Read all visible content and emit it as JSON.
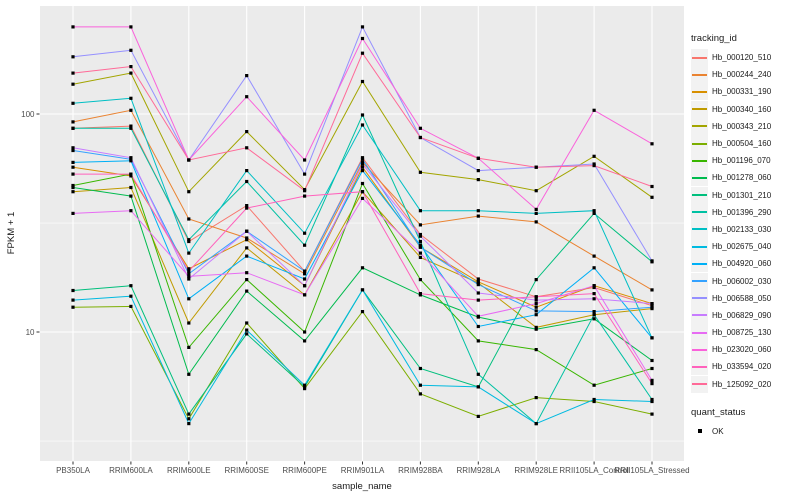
{
  "figure": {
    "background": "#FFFFFF",
    "panel_background": "#EBEBEB",
    "grid_color": "#FFFFFF",
    "axis_text_color": "#4D4D4D",
    "axis_title_color": "#1A1A1A",
    "tick_mark_color": "#333333",
    "point_color": "#000000",
    "legend_key_background": "#F2F2F2"
  },
  "chart_data": {
    "type": "line",
    "title": "",
    "xlabel": "sample_name",
    "ylabel": "FPKM + 1",
    "y_scale": "log10",
    "ylim": [
      2.6,
      320
    ],
    "y_tick_values": [
      100,
      10
    ],
    "y_tick_labels": [
      "100",
      "10"
    ],
    "y_minor_breaks": [
      31.6,
      3.16
    ],
    "grid": "on",
    "legend_position": "right",
    "legend_title": "tracking_id",
    "point_legend": {
      "title": "quant_status",
      "items": [
        {
          "label": "OK",
          "marker": "black-square"
        }
      ]
    },
    "x_categories": [
      "PB350LA",
      "RRIM600LA",
      "RRIM600LE",
      "RRIM600SE",
      "RRIM600PE",
      "RRIM901LA",
      "RRIM928BA",
      "RRIM928LA",
      "RRIM928LE",
      "RRII105LA_Control",
      "RRII105LA_Stressed"
    ],
    "series": [
      {
        "name": "Hb_000120_510",
        "color": "#F8766D",
        "values": [
          86,
          88,
          26,
          38,
          19,
          63,
          28,
          17.5,
          14.5,
          16,
          13.2
        ]
      },
      {
        "name": "Hb_000244_240",
        "color": "#EA8331",
        "values": [
          92,
          104,
          33,
          27,
          18.5,
          60,
          31,
          34,
          32,
          22.3,
          15.6
        ]
      },
      {
        "name": "Hb_000331_190",
        "color": "#D89000",
        "values": [
          57,
          52,
          19.5,
          26.5,
          16.3,
          57,
          24.5,
          17,
          13,
          16.3,
          13.5
        ]
      },
      {
        "name": "Hb_000340_160",
        "color": "#C09B00",
        "values": [
          44,
          46,
          11,
          24.3,
          14.8,
          44,
          22,
          16.8,
          10.5,
          12,
          12.8
        ]
      },
      {
        "name": "Hb_000343_210",
        "color": "#A3A500",
        "values": [
          137,
          154,
          44,
          83,
          45,
          141,
          54,
          50,
          44.5,
          64,
          41.5
        ]
      },
      {
        "name": "Hb_000504_160",
        "color": "#7CAE00",
        "values": [
          13,
          13.1,
          4.0,
          11,
          5.5,
          12.4,
          5.2,
          4.1,
          5.0,
          4.8,
          4.2
        ]
      },
      {
        "name": "Hb_001196_070",
        "color": "#39B600",
        "values": [
          47,
          53,
          8.5,
          17.4,
          10,
          48,
          17.4,
          9.1,
          8.3,
          5.7,
          6.8
        ]
      },
      {
        "name": "Hb_001278_060",
        "color": "#00BB4E",
        "values": [
          46,
          42,
          6.4,
          15.4,
          9.1,
          19.7,
          14.8,
          11.7,
          10.3,
          11.5,
          7.4
        ]
      },
      {
        "name": "Hb_001301_210",
        "color": "#00BF7D",
        "values": [
          15.5,
          16.3,
          4.2,
          9.8,
          5.6,
          15.6,
          6.8,
          5.6,
          17.4,
          35,
          21
        ]
      },
      {
        "name": "Hb_001396_290",
        "color": "#00C1A3",
        "values": [
          86,
          86,
          26.5,
          49,
          25,
          99,
          26,
          6.4,
          3.8,
          12,
          4.9
        ]
      },
      {
        "name": "Hb_002133_030",
        "color": "#00BFC4",
        "values": [
          112,
          118,
          23,
          55,
          28.4,
          89,
          36,
          36,
          35,
          36,
          9.4
        ]
      },
      {
        "name": "Hb_002675_040",
        "color": "#00BAE0",
        "values": [
          14,
          14.6,
          3.8,
          10.2,
          5.7,
          15.6,
          5.7,
          5.6,
          3.8,
          4.9,
          4.8
        ]
      },
      {
        "name": "Hb_004920_060",
        "color": "#00B0F6",
        "values": [
          60,
          61,
          14.2,
          22.3,
          17.5,
          55,
          25,
          10.6,
          12,
          19.7,
          9.4
        ]
      },
      {
        "name": "Hb_006002_030",
        "color": "#35A2FF",
        "values": [
          68,
          62,
          18.5,
          29,
          19,
          62,
          24.5,
          16.5,
          12.5,
          12.4,
          13
        ]
      },
      {
        "name": "Hb_006588_050",
        "color": "#9590FF",
        "values": [
          183,
          196,
          61.5,
          150,
          53,
          251,
          78,
          55,
          57,
          59,
          21.2
        ]
      },
      {
        "name": "Hb_006829_090",
        "color": "#C77CFF",
        "values": [
          70,
          63,
          17.5,
          29,
          16.3,
          59,
          27.5,
          15.1,
          14,
          14.2,
          13.5
        ]
      },
      {
        "name": "Hb_008725_130",
        "color": "#E76BF3",
        "values": [
          35,
          36,
          18,
          18.7,
          14.8,
          41,
          23,
          11.8,
          13.5,
          16.3,
          6.0
        ]
      },
      {
        "name": "Hb_023020_060",
        "color": "#FA62DB",
        "values": [
          251,
          251,
          61.5,
          120,
          61.5,
          222,
          86,
          62.6,
          36.5,
          104,
          73
        ]
      },
      {
        "name": "Hb_033594_020",
        "color": "#FF62BC",
        "values": [
          53,
          53,
          19,
          37,
          42,
          44,
          15,
          14,
          14.5,
          15,
          5.8
        ]
      },
      {
        "name": "Hb_125092_020",
        "color": "#FF6A98",
        "values": [
          154,
          165,
          61.5,
          70,
          44.5,
          190,
          78,
          62.6,
          57,
          58,
          46.5
        ]
      }
    ]
  }
}
